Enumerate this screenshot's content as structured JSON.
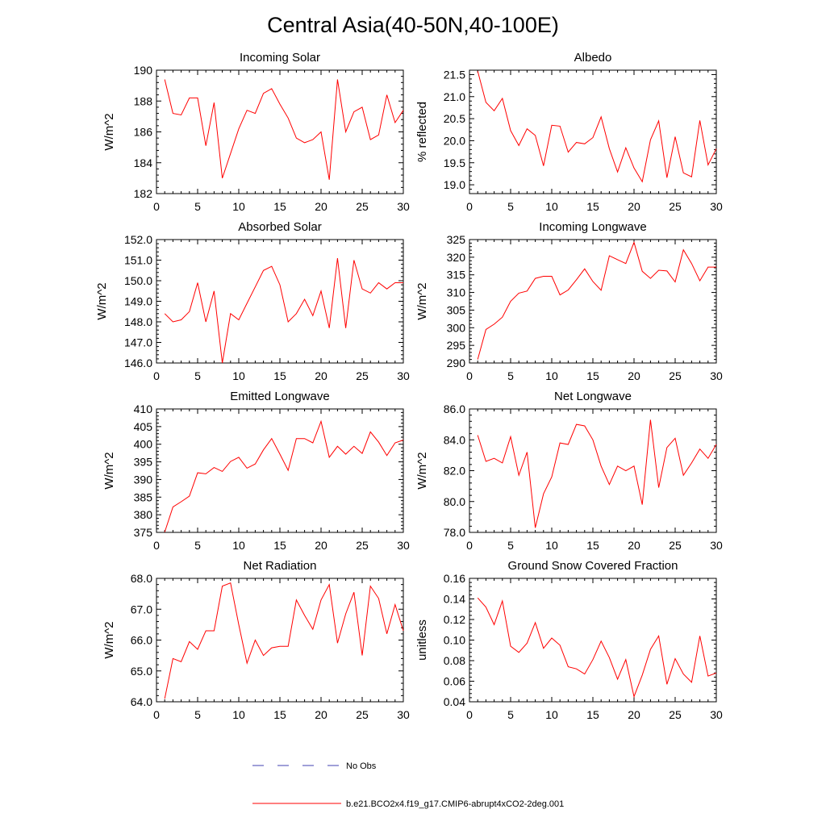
{
  "title": "Central Asia(40-50N,40-100E)",
  "colors": {
    "model": "#ff0000",
    "obs": "#4040b0",
    "axis": "#000000"
  },
  "legend": {
    "obs_label": "No Obs",
    "model_label": "b.e21.BCO2x4.f19_g17.CMIP6-abrupt4xCO2-2deg.001"
  },
  "chart_data": [
    {
      "type": "line",
      "title": "Incoming Solar",
      "ylabel": "W/m^2",
      "xlim": [
        0,
        30
      ],
      "ylim": [
        182,
        190
      ],
      "yticks": [
        "182",
        "184",
        "186",
        "188",
        "190"
      ],
      "x": [
        1,
        2,
        3,
        4,
        5,
        6,
        7,
        8,
        9,
        10,
        11,
        12,
        13,
        14,
        15,
        16,
        17,
        18,
        19,
        20,
        21,
        22,
        23,
        24,
        25,
        26,
        27,
        28,
        29,
        30
      ],
      "series": [
        {
          "name": "b.e21.BCO2x4.f19_g17.CMIP6-abrupt4xCO2-2deg.001",
          "values": [
            189.4,
            187.2,
            187.1,
            188.2,
            188.2,
            185.1,
            187.9,
            183.0,
            184.6,
            186.2,
            187.4,
            187.2,
            188.5,
            188.8,
            187.8,
            186.9,
            185.6,
            185.3,
            185.5,
            186.0,
            182.9,
            189.4,
            186.0,
            187.3,
            187.6,
            185.5,
            185.8,
            188.4,
            186.6,
            187.4
          ]
        }
      ]
    },
    {
      "type": "line",
      "title": "Albedo",
      "ylabel": "% reflected",
      "xlim": [
        0,
        30
      ],
      "ylim": [
        18.8,
        21.6
      ],
      "yticks": [
        "19.0",
        "19.5",
        "20.0",
        "20.5",
        "21.0",
        "21.5"
      ],
      "x": [
        1,
        2,
        3,
        4,
        5,
        6,
        7,
        8,
        9,
        10,
        11,
        12,
        13,
        14,
        15,
        16,
        17,
        18,
        19,
        20,
        21,
        22,
        23,
        24,
        25,
        26,
        27,
        28,
        29,
        30
      ],
      "series": [
        {
          "name": "b.e21.BCO2x4.f19_g17.CMIP6-abrupt4xCO2-2deg.001",
          "values": [
            21.58,
            20.87,
            20.68,
            20.96,
            20.23,
            19.89,
            20.27,
            20.12,
            19.43,
            20.35,
            20.33,
            19.74,
            19.96,
            19.93,
            20.07,
            20.54,
            19.82,
            19.29,
            19.84,
            19.38,
            19.07,
            20.02,
            20.45,
            19.16,
            20.09,
            19.27,
            19.18,
            20.46,
            19.45,
            19.82
          ]
        }
      ]
    },
    {
      "type": "line",
      "title": "Absorbed Solar",
      "ylabel": "W/m^2",
      "xlim": [
        0,
        30
      ],
      "ylim": [
        146.0,
        152.0
      ],
      "yticks": [
        "146.0",
        "147.0",
        "148.0",
        "149.0",
        "150.0",
        "151.0",
        "152.0"
      ],
      "x": [
        1,
        2,
        3,
        4,
        5,
        6,
        7,
        8,
        9,
        10,
        11,
        12,
        13,
        14,
        15,
        16,
        17,
        18,
        19,
        20,
        21,
        22,
        23,
        24,
        25,
        26,
        27,
        28,
        29,
        30
      ],
      "series": [
        {
          "name": "b.e21.BCO2x4.f19_g17.CMIP6-abrupt4xCO2-2deg.001",
          "values": [
            148.4,
            148.0,
            148.1,
            148.5,
            149.9,
            148.0,
            149.5,
            146.0,
            148.4,
            148.1,
            148.9,
            149.7,
            150.5,
            150.7,
            149.8,
            148.0,
            148.4,
            149.1,
            148.3,
            149.5,
            147.7,
            151.1,
            147.7,
            151.0,
            149.6,
            149.4,
            149.9,
            149.6,
            149.9,
            149.9
          ]
        }
      ]
    },
    {
      "type": "line",
      "title": "Incoming Longwave",
      "ylabel": "W/m^2",
      "xlim": [
        0,
        30
      ],
      "ylim": [
        290,
        325
      ],
      "yticks": [
        "290",
        "295",
        "300",
        "305",
        "310",
        "315",
        "320",
        "325"
      ],
      "x": [
        1,
        2,
        3,
        4,
        5,
        6,
        7,
        8,
        9,
        10,
        11,
        12,
        13,
        14,
        15,
        16,
        17,
        18,
        19,
        20,
        21,
        22,
        23,
        24,
        25,
        26,
        27,
        28,
        29,
        30
      ],
      "series": [
        {
          "name": "b.e21.BCO2x4.f19_g17.CMIP6-abrupt4xCO2-2deg.001",
          "values": [
            291.0,
            299.5,
            301.0,
            303.0,
            307.5,
            309.8,
            310.4,
            314.0,
            314.6,
            314.6,
            309.3,
            310.7,
            313.6,
            316.7,
            313.1,
            310.6,
            320.4,
            319.3,
            318.2,
            324.2,
            316.0,
            314.0,
            316.3,
            316.1,
            313.0,
            322.1,
            318.2,
            313.3,
            317.2,
            317.2
          ]
        }
      ]
    },
    {
      "type": "line",
      "title": "Emitted Longwave",
      "ylabel": "W/m^2",
      "xlim": [
        0,
        30
      ],
      "ylim": [
        375,
        410
      ],
      "yticks": [
        "375",
        "380",
        "385",
        "390",
        "395",
        "400",
        "405",
        "410"
      ],
      "x": [
        1,
        2,
        3,
        4,
        5,
        6,
        7,
        8,
        9,
        10,
        11,
        12,
        13,
        14,
        15,
        16,
        17,
        18,
        19,
        20,
        21,
        22,
        23,
        24,
        25,
        26,
        27,
        28,
        29,
        30
      ],
      "series": [
        {
          "name": "b.e21.BCO2x4.f19_g17.CMIP6-abrupt4xCO2-2deg.001",
          "values": [
            375.1,
            382.2,
            383.7,
            385.3,
            391.9,
            391.6,
            393.4,
            392.3,
            395.1,
            396.3,
            393.2,
            394.4,
            398.4,
            401.6,
            397.2,
            392.6,
            401.6,
            401.6,
            400.4,
            406.5,
            396.3,
            399.4,
            397.2,
            399.4,
            397.4,
            403.5,
            400.6,
            396.8,
            400.4,
            401.2
          ]
        }
      ]
    },
    {
      "type": "line",
      "title": "Net Longwave",
      "ylabel": "W/m^2",
      "xlim": [
        0,
        30
      ],
      "ylim": [
        78.0,
        86.0
      ],
      "yticks": [
        "78.0",
        "80.0",
        "82.0",
        "84.0",
        "86.0"
      ],
      "x": [
        1,
        2,
        3,
        4,
        5,
        6,
        7,
        8,
        9,
        10,
        11,
        12,
        13,
        14,
        15,
        16,
        17,
        18,
        19,
        20,
        21,
        22,
        23,
        24,
        25,
        26,
        27,
        28,
        29,
        30
      ],
      "series": [
        {
          "name": "b.e21.BCO2x4.f19_g17.CMIP6-abrupt4xCO2-2deg.001",
          "values": [
            84.3,
            82.6,
            82.8,
            82.5,
            84.2,
            81.7,
            83.2,
            78.3,
            80.5,
            81.6,
            83.8,
            83.7,
            85.0,
            84.9,
            84.0,
            82.3,
            81.1,
            82.3,
            82.0,
            82.3,
            79.8,
            85.3,
            80.9,
            83.5,
            84.1,
            81.7,
            82.5,
            83.4,
            82.8,
            83.7
          ]
        }
      ]
    },
    {
      "type": "line",
      "title": "Net Radiation",
      "ylabel": "W/m^2",
      "xlim": [
        0,
        30
      ],
      "ylim": [
        64.0,
        68.0
      ],
      "yticks": [
        "64.0",
        "65.0",
        "66.0",
        "67.0",
        "68.0"
      ],
      "x": [
        1,
        2,
        3,
        4,
        5,
        6,
        7,
        8,
        9,
        10,
        11,
        12,
        13,
        14,
        15,
        16,
        17,
        18,
        19,
        20,
        21,
        22,
        23,
        24,
        25,
        26,
        27,
        28,
        29,
        30
      ],
      "series": [
        {
          "name": "b.e21.BCO2x4.f19_g17.CMIP6-abrupt4xCO2-2deg.001",
          "values": [
            64.1,
            65.4,
            65.3,
            65.95,
            65.7,
            66.3,
            66.3,
            67.75,
            67.85,
            66.5,
            65.25,
            66.0,
            65.5,
            65.75,
            65.8,
            65.8,
            67.3,
            66.8,
            66.35,
            67.3,
            67.8,
            65.9,
            66.85,
            67.55,
            65.5,
            67.75,
            67.35,
            66.2,
            67.15,
            66.3
          ]
        }
      ]
    },
    {
      "type": "line",
      "title": "Ground Snow Covered Fraction",
      "ylabel": "unitless",
      "xlim": [
        0,
        30
      ],
      "ylim": [
        0.04,
        0.16
      ],
      "yticks": [
        "0.04",
        "0.06",
        "0.08",
        "0.10",
        "0.12",
        "0.14",
        "0.16"
      ],
      "x": [
        1,
        2,
        3,
        4,
        5,
        6,
        7,
        8,
        9,
        10,
        11,
        12,
        13,
        14,
        15,
        16,
        17,
        18,
        19,
        20,
        21,
        22,
        23,
        24,
        25,
        26,
        27,
        28,
        29,
        30
      ],
      "series": [
        {
          "name": "b.e21.BCO2x4.f19_g17.CMIP6-abrupt4xCO2-2deg.001",
          "values": [
            0.141,
            0.132,
            0.115,
            0.138,
            0.094,
            0.088,
            0.097,
            0.117,
            0.092,
            0.102,
            0.095,
            0.074,
            0.072,
            0.067,
            0.081,
            0.099,
            0.083,
            0.062,
            0.081,
            0.045,
            0.066,
            0.091,
            0.104,
            0.057,
            0.082,
            0.067,
            0.059,
            0.104,
            0.065,
            0.068
          ]
        }
      ]
    }
  ],
  "xticks": [
    "0",
    "5",
    "10",
    "15",
    "20",
    "25",
    "30"
  ]
}
